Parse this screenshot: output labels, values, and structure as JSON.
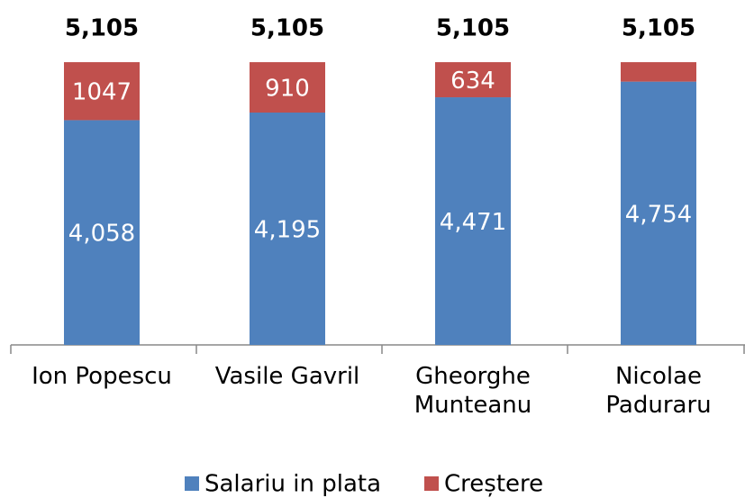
{
  "chart_data": {
    "type": "stacked_bar",
    "categories": [
      "Ion Popescu",
      "Vasile Gavril",
      "Gheorghe Munteanu",
      "Nicolae Paduraru"
    ],
    "series": [
      {
        "name": "Salariu in plata",
        "color": "#4f81bd",
        "values": [
          4058,
          4195,
          4471,
          4754
        ],
        "value_labels": [
          "4,058",
          "4,195",
          "4,471",
          "4,754"
        ]
      },
      {
        "name": "Creștere",
        "color": "#c0504d",
        "values": [
          1047,
          910,
          634,
          351
        ],
        "value_labels": [
          "1047",
          "910",
          "634",
          null
        ]
      }
    ],
    "totals": [
      5105,
      5105,
      5105,
      5105
    ],
    "total_labels": [
      "5,105",
      "5,105",
      "5,105",
      "5,105"
    ],
    "ylim": [
      0,
      6000
    ],
    "legend": "bottom"
  }
}
